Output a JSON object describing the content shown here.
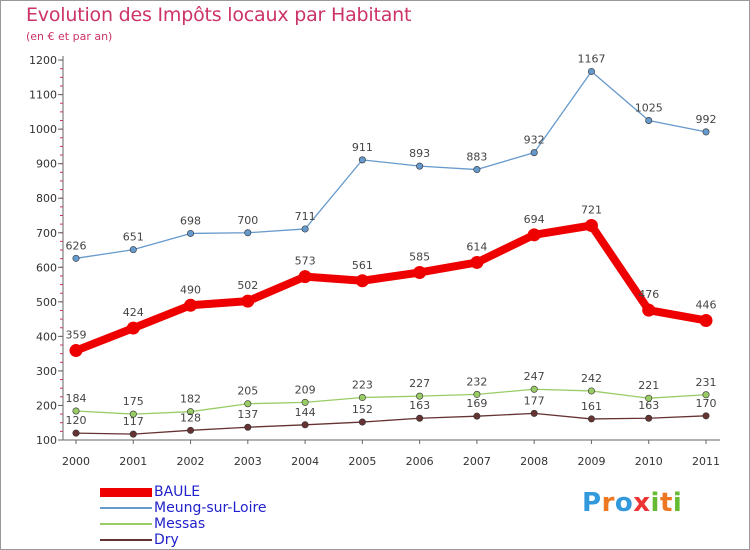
{
  "title": "Evolution des Impôts locaux par Habitant",
  "subtitle": "(en € et par an)",
  "logo": {
    "letters": [
      "P",
      "r",
      "o",
      "x",
      "i",
      "t",
      "i"
    ],
    "colors": [
      "#3399dd",
      "#ee7722",
      "#3399dd",
      "#ee3333",
      "#66bb33",
      "#ee7722",
      "#66bb33"
    ]
  },
  "chart_data": {
    "type": "line",
    "title": "Evolution des Impôts locaux par Habitant",
    "subtitle": "(en € et par an)",
    "x": [
      "2000",
      "2001",
      "2002",
      "2003",
      "2004",
      "2005",
      "2006",
      "2007",
      "2008",
      "2009",
      "2010",
      "2011"
    ],
    "ylim": [
      100,
      1200
    ],
    "yticks": [
      "100",
      "200",
      "300",
      "400",
      "500",
      "600",
      "700",
      "800",
      "900",
      "1000",
      "1100",
      "1200"
    ],
    "grid": false,
    "legend_position": "bottom-left",
    "series": [
      {
        "name": "BAULE",
        "color": "#ee0000",
        "values": [
          359,
          424,
          490,
          502,
          573,
          561,
          585,
          614,
          694,
          721,
          476,
          446
        ]
      },
      {
        "name": "Meung-sur-Loire",
        "color": "#6699cc",
        "values": [
          626,
          651,
          698,
          700,
          711,
          911,
          893,
          883,
          932,
          1167,
          1025,
          992
        ]
      },
      {
        "name": "Messas",
        "color": "#99cc66",
        "values": [
          184,
          175,
          182,
          205,
          209,
          223,
          227,
          232,
          247,
          242,
          221,
          231
        ]
      },
      {
        "name": "Dry",
        "color": "#663333",
        "values": [
          120,
          117,
          128,
          137,
          144,
          152,
          163,
          169,
          177,
          161,
          163,
          170
        ]
      }
    ]
  }
}
